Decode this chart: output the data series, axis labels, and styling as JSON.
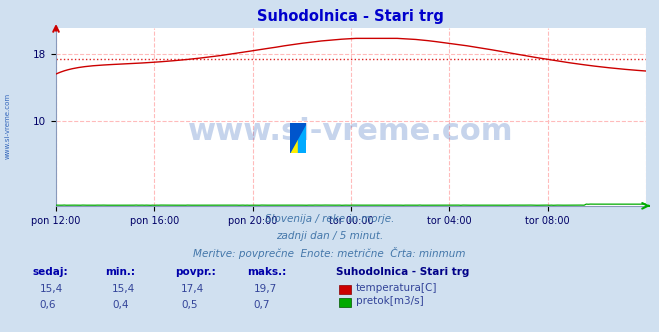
{
  "title": "Suhodolnica - Stari trg",
  "title_color": "#0000cc",
  "bg_color": "#d0e0f0",
  "plot_bg_color": "#ffffff",
  "grid_color": "#ffbbbb",
  "xlabel_ticks": [
    "pon 12:00",
    "pon 16:00",
    "pon 20:00",
    "tor 00:00",
    "tor 04:00",
    "tor 08:00"
  ],
  "yticks": [
    10,
    18
  ],
  "ylim": [
    0,
    21
  ],
  "xlim_min": 0,
  "xlim_max": 287,
  "temp_color": "#cc0000",
  "flow_color": "#00aa00",
  "avg_line_color": "#dd2222",
  "avg_value": 17.4,
  "temp_min": 15.4,
  "temp_max": 19.7,
  "temp_avg": 17.4,
  "temp_now": 15.4,
  "flow_min": 0.4,
  "flow_max": 0.7,
  "flow_avg": 0.5,
  "flow_now": 0.6,
  "watermark": "www.si-vreme.com",
  "watermark_color": "#3366bb",
  "subtitle1": "Slovenija / reke in morje.",
  "subtitle2": "zadnji dan / 5 minut.",
  "subtitle3": "Meritve: povprečne  Enote: metrične  Črta: minmum",
  "legend_title": "Suhodolnica - Stari trg",
  "legend_temp": "temperatura[C]",
  "legend_flow": "pretok[m3/s]",
  "label_color": "#0000aa",
  "tick_color": "#000066",
  "side_label": "www.si-vreme.com"
}
